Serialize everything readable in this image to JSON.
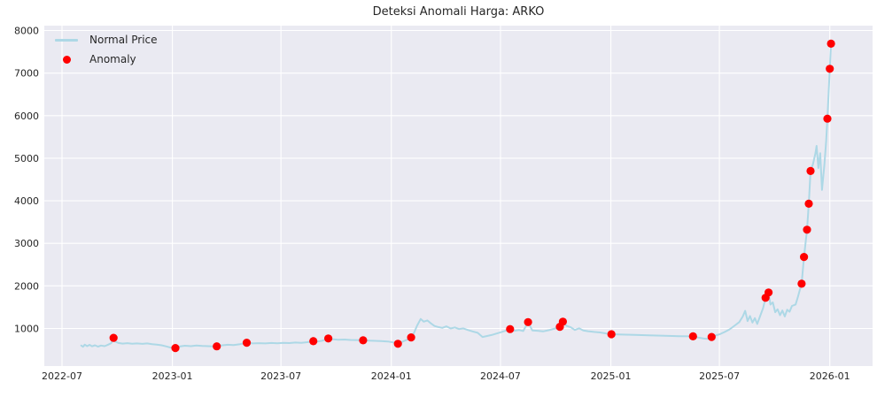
{
  "chart_data": {
    "type": "line",
    "title": "Deteksi Anomali Harga: ARKO",
    "xlabel": "",
    "ylabel": "",
    "grid": true,
    "ylim": [
      100,
      8100
    ],
    "y_ticks": [
      {
        "label": "1000",
        "value": 1000
      },
      {
        "label": "2000",
        "value": 2000
      },
      {
        "label": "3000",
        "value": 3000
      },
      {
        "label": "4000",
        "value": 4000
      },
      {
        "label": "5000",
        "value": 5000
      },
      {
        "label": "6000",
        "value": 6000
      },
      {
        "label": "7000",
        "value": 7000
      },
      {
        "label": "8000",
        "value": 8000
      }
    ],
    "x_ticks": [
      {
        "label": "2022-07",
        "date": "2022-07-01"
      },
      {
        "label": "2023-01",
        "date": "2023-01-01"
      },
      {
        "label": "2023-07",
        "date": "2023-07-01"
      },
      {
        "label": "2024-01",
        "date": "2024-01-01"
      },
      {
        "label": "2024-07",
        "date": "2024-07-01"
      },
      {
        "label": "2025-01",
        "date": "2025-01-01"
      },
      {
        "label": "2025-07",
        "date": "2025-07-01"
      },
      {
        "label": "2026-01",
        "date": "2026-01-01"
      }
    ],
    "legend": {
      "position": "upper left",
      "entries": [
        {
          "label": "Normal Price",
          "type": "line",
          "color": "#add8e6"
        },
        {
          "label": "Anomaly",
          "type": "dot",
          "color": "#ff0000"
        }
      ]
    },
    "series": [
      {
        "name": "Normal Price",
        "color": "#add8e6",
        "points": [
          [
            "2022-08-02",
            600
          ],
          [
            "2022-08-05",
            570
          ],
          [
            "2022-08-08",
            620
          ],
          [
            "2022-08-12",
            585
          ],
          [
            "2022-08-16",
            615
          ],
          [
            "2022-08-20",
            580
          ],
          [
            "2022-08-25",
            605
          ],
          [
            "2022-08-30",
            575
          ],
          [
            "2022-09-04",
            600
          ],
          [
            "2022-09-10",
            585
          ],
          [
            "2022-09-16",
            620
          ],
          [
            "2022-09-21",
            655
          ],
          [
            "2022-09-25",
            780
          ],
          [
            "2022-09-28",
            690
          ],
          [
            "2022-10-03",
            660
          ],
          [
            "2022-10-10",
            645
          ],
          [
            "2022-10-18",
            655
          ],
          [
            "2022-10-26",
            640
          ],
          [
            "2022-11-03",
            650
          ],
          [
            "2022-11-12",
            638
          ],
          [
            "2022-11-20",
            648
          ],
          [
            "2022-11-28",
            632
          ],
          [
            "2022-12-06",
            622
          ],
          [
            "2022-12-14",
            605
          ],
          [
            "2022-12-22",
            578
          ],
          [
            "2022-12-29",
            552
          ],
          [
            "2023-01-06",
            540
          ],
          [
            "2023-01-14",
            578
          ],
          [
            "2023-01-22",
            595
          ],
          [
            "2023-02-01",
            585
          ],
          [
            "2023-02-10",
            602
          ],
          [
            "2023-02-20",
            590
          ],
          [
            "2023-03-02",
            585
          ],
          [
            "2023-03-09",
            578
          ],
          [
            "2023-03-16",
            580
          ],
          [
            "2023-03-24",
            604
          ],
          [
            "2023-04-03",
            618
          ],
          [
            "2023-04-13",
            610
          ],
          [
            "2023-04-24",
            632
          ],
          [
            "2023-05-05",
            665
          ],
          [
            "2023-05-15",
            650
          ],
          [
            "2023-05-25",
            656
          ],
          [
            "2023-06-05",
            648
          ],
          [
            "2023-06-15",
            660
          ],
          [
            "2023-06-25",
            654
          ],
          [
            "2023-07-05",
            664
          ],
          [
            "2023-07-15",
            658
          ],
          [
            "2023-07-25",
            670
          ],
          [
            "2023-08-04",
            664
          ],
          [
            "2023-08-14",
            678
          ],
          [
            "2023-08-24",
            700
          ],
          [
            "2023-09-01",
            694
          ],
          [
            "2023-09-08",
            714
          ],
          [
            "2023-09-18",
            765
          ],
          [
            "2023-09-26",
            744
          ],
          [
            "2023-10-05",
            735
          ],
          [
            "2023-10-15",
            740
          ],
          [
            "2023-10-25",
            730
          ],
          [
            "2023-11-05",
            727
          ],
          [
            "2023-11-15",
            722
          ],
          [
            "2023-11-25",
            716
          ],
          [
            "2023-12-05",
            710
          ],
          [
            "2023-12-15",
            706
          ],
          [
            "2023-12-26",
            695
          ],
          [
            "2024-01-05",
            672
          ],
          [
            "2024-01-12",
            640
          ],
          [
            "2024-01-20",
            692
          ],
          [
            "2024-01-28",
            740
          ],
          [
            "2024-02-03",
            790
          ],
          [
            "2024-02-08",
            905
          ],
          [
            "2024-02-13",
            1065
          ],
          [
            "2024-02-19",
            1225
          ],
          [
            "2024-02-24",
            1160
          ],
          [
            "2024-03-01",
            1190
          ],
          [
            "2024-03-07",
            1120
          ],
          [
            "2024-03-13",
            1058
          ],
          [
            "2024-03-19",
            1035
          ],
          [
            "2024-03-26",
            1015
          ],
          [
            "2024-04-02",
            1050
          ],
          [
            "2024-04-09",
            1000
          ],
          [
            "2024-04-16",
            1025
          ],
          [
            "2024-04-23",
            985
          ],
          [
            "2024-04-30",
            1002
          ],
          [
            "2024-05-08",
            962
          ],
          [
            "2024-05-16",
            930
          ],
          [
            "2024-05-24",
            898
          ],
          [
            "2024-06-01",
            800
          ],
          [
            "2024-06-08",
            822
          ],
          [
            "2024-06-16",
            846
          ],
          [
            "2024-06-24",
            880
          ],
          [
            "2024-07-02",
            912
          ],
          [
            "2024-07-10",
            950
          ],
          [
            "2024-07-17",
            985
          ],
          [
            "2024-07-24",
            945
          ],
          [
            "2024-08-01",
            962
          ],
          [
            "2024-08-08",
            940
          ],
          [
            "2024-08-16",
            1150
          ],
          [
            "2024-08-23",
            955
          ],
          [
            "2024-09-01",
            946
          ],
          [
            "2024-09-10",
            932
          ],
          [
            "2024-09-20",
            960
          ],
          [
            "2024-09-30",
            1000
          ],
          [
            "2024-10-08",
            1040
          ],
          [
            "2024-10-13",
            1160
          ],
          [
            "2024-10-19",
            1062
          ],
          [
            "2024-10-26",
            1030
          ],
          [
            "2024-11-02",
            965
          ],
          [
            "2024-11-09",
            1005
          ],
          [
            "2024-11-16",
            952
          ],
          [
            "2024-11-24",
            936
          ],
          [
            "2024-12-04",
            920
          ],
          [
            "2024-12-14",
            906
          ],
          [
            "2024-12-23",
            885
          ],
          [
            "2025-01-02",
            865
          ],
          [
            "2025-01-20",
            856
          ],
          [
            "2025-02-10",
            848
          ],
          [
            "2025-03-05",
            838
          ],
          [
            "2025-04-01",
            828
          ],
          [
            "2025-04-25",
            820
          ],
          [
            "2025-05-18",
            815
          ],
          [
            "2025-05-27",
            786
          ],
          [
            "2025-06-05",
            764
          ],
          [
            "2025-06-11",
            756
          ],
          [
            "2025-06-18",
            800
          ],
          [
            "2025-06-25",
            838
          ],
          [
            "2025-07-02",
            868
          ],
          [
            "2025-07-10",
            918
          ],
          [
            "2025-07-18",
            980
          ],
          [
            "2025-07-26",
            1062
          ],
          [
            "2025-08-03",
            1150
          ],
          [
            "2025-08-09",
            1282
          ],
          [
            "2025-08-13",
            1415
          ],
          [
            "2025-08-17",
            1175
          ],
          [
            "2025-08-21",
            1292
          ],
          [
            "2025-08-25",
            1140
          ],
          [
            "2025-08-29",
            1242
          ],
          [
            "2025-09-02",
            1105
          ],
          [
            "2025-09-07",
            1300
          ],
          [
            "2025-09-12",
            1485
          ],
          [
            "2025-09-16",
            1720
          ],
          [
            "2025-09-21",
            1845
          ],
          [
            "2025-09-24",
            1560
          ],
          [
            "2025-09-28",
            1612
          ],
          [
            "2025-10-02",
            1382
          ],
          [
            "2025-10-06",
            1450
          ],
          [
            "2025-10-10",
            1312
          ],
          [
            "2025-10-14",
            1422
          ],
          [
            "2025-10-18",
            1282
          ],
          [
            "2025-10-22",
            1440
          ],
          [
            "2025-10-26",
            1392
          ],
          [
            "2025-10-30",
            1530
          ],
          [
            "2025-11-05",
            1562
          ],
          [
            "2025-11-09",
            1748
          ],
          [
            "2025-11-12",
            1900
          ],
          [
            "2025-11-15",
            2050
          ],
          [
            "2025-11-19",
            2680
          ],
          [
            "2025-11-24",
            3320
          ],
          [
            "2025-11-27",
            3930
          ],
          [
            "2025-11-30",
            4700
          ],
          [
            "2025-12-04",
            4860
          ],
          [
            "2025-12-08",
            5105
          ],
          [
            "2025-12-10",
            5290
          ],
          [
            "2025-12-13",
            4770
          ],
          [
            "2025-12-16",
            5120
          ],
          [
            "2025-12-19",
            4255
          ],
          [
            "2025-12-23",
            4845
          ],
          [
            "2025-12-26",
            5400
          ],
          [
            "2025-12-28",
            5930
          ],
          [
            "2026-01-01",
            7100
          ],
          [
            "2026-01-03",
            7690
          ]
        ]
      }
    ],
    "anomalies": {
      "name": "Anomaly",
      "color": "#ff0000",
      "points": [
        [
          "2022-09-25",
          780
        ],
        [
          "2023-01-06",
          540
        ],
        [
          "2023-03-16",
          580
        ],
        [
          "2023-05-05",
          665
        ],
        [
          "2023-08-24",
          700
        ],
        [
          "2023-09-18",
          765
        ],
        [
          "2023-11-15",
          722
        ],
        [
          "2024-01-12",
          640
        ],
        [
          "2024-02-03",
          790
        ],
        [
          "2024-07-17",
          985
        ],
        [
          "2024-08-16",
          1150
        ],
        [
          "2024-10-08",
          1040
        ],
        [
          "2024-10-13",
          1160
        ],
        [
          "2025-01-02",
          865
        ],
        [
          "2025-05-18",
          815
        ],
        [
          "2025-06-18",
          800
        ],
        [
          "2025-09-16",
          1720
        ],
        [
          "2025-09-21",
          1845
        ],
        [
          "2025-11-15",
          2050
        ],
        [
          "2025-11-19",
          2680
        ],
        [
          "2025-11-24",
          3320
        ],
        [
          "2025-11-27",
          3930
        ],
        [
          "2025-11-30",
          4700
        ],
        [
          "2025-12-28",
          5930
        ],
        [
          "2026-01-01",
          7100
        ],
        [
          "2026-01-03",
          7690
        ]
      ]
    }
  },
  "colors": {
    "figure_bg": "#ffffff",
    "plot_bg": "#eaeaf2",
    "grid": "#ffffff",
    "text": "#262626",
    "line": "#add8e6",
    "anomaly": "#ff0000"
  }
}
